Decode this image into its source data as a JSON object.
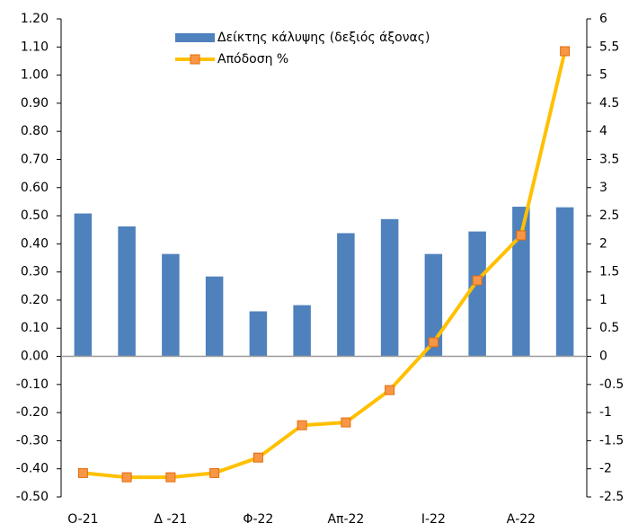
{
  "chart_data": {
    "type": "bar",
    "categories": [
      "O-21",
      null,
      "Δ -21",
      null,
      "Φ-22",
      null,
      "Απ-22",
      null,
      "Ι-22",
      null,
      "Α-22",
      null
    ],
    "series": [
      {
        "name": "Δείκτης κάλυψης (δεξιός άξονας)",
        "type": "bar",
        "axis": "y2",
        "color": "#4f81bd",
        "values": [
          2.54,
          2.31,
          1.82,
          1.42,
          0.8,
          0.91,
          2.19,
          2.44,
          1.82,
          2.22,
          2.66,
          2.65
        ]
      },
      {
        "name": "Απόδοση %",
        "type": "line",
        "color": "#ffc000",
        "marker_color": "#f79646",
        "values": [
          -0.415,
          -0.43,
          -0.43,
          -0.415,
          -0.36,
          -0.245,
          -0.235,
          -0.12,
          0.05,
          0.27,
          0.43,
          1.085
        ]
      }
    ],
    "ylim": [
      -0.5,
      1.2
    ],
    "yticks": [
      {
        "value": 1.2,
        "label": "1.20"
      },
      {
        "value": 1.1,
        "label": "1.10"
      },
      {
        "value": 1.0,
        "label": "1.00"
      },
      {
        "value": 0.9,
        "label": "0.90"
      },
      {
        "value": 0.8,
        "label": "0.80"
      },
      {
        "value": 0.7,
        "label": "0.70"
      },
      {
        "value": 0.6,
        "label": "0.60"
      },
      {
        "value": 0.5,
        "label": "0.50"
      },
      {
        "value": 0.4,
        "label": "0.40"
      },
      {
        "value": 0.3,
        "label": "0.30"
      },
      {
        "value": 0.2,
        "label": "0.20"
      },
      {
        "value": 0.1,
        "label": "0.10"
      },
      {
        "value": 0,
        "label": "0.00"
      },
      {
        "value": -0.1,
        "label": "-0.10"
      },
      {
        "value": -0.2,
        "label": "-0.20"
      },
      {
        "value": -0.3,
        "label": "-0.30"
      },
      {
        "value": -0.4,
        "label": "-0.40"
      },
      {
        "value": -0.5,
        "label": "-0.50"
      }
    ],
    "y2lim": [
      -2.5,
      6
    ],
    "y2ticks": [
      6,
      5.5,
      5,
      4.5,
      4,
      3.5,
      3,
      2.5,
      2,
      1.5,
      1,
      0.5,
      0,
      -0.5,
      -1,
      -1.5,
      -2,
      -2.5
    ],
    "grid": false
  }
}
